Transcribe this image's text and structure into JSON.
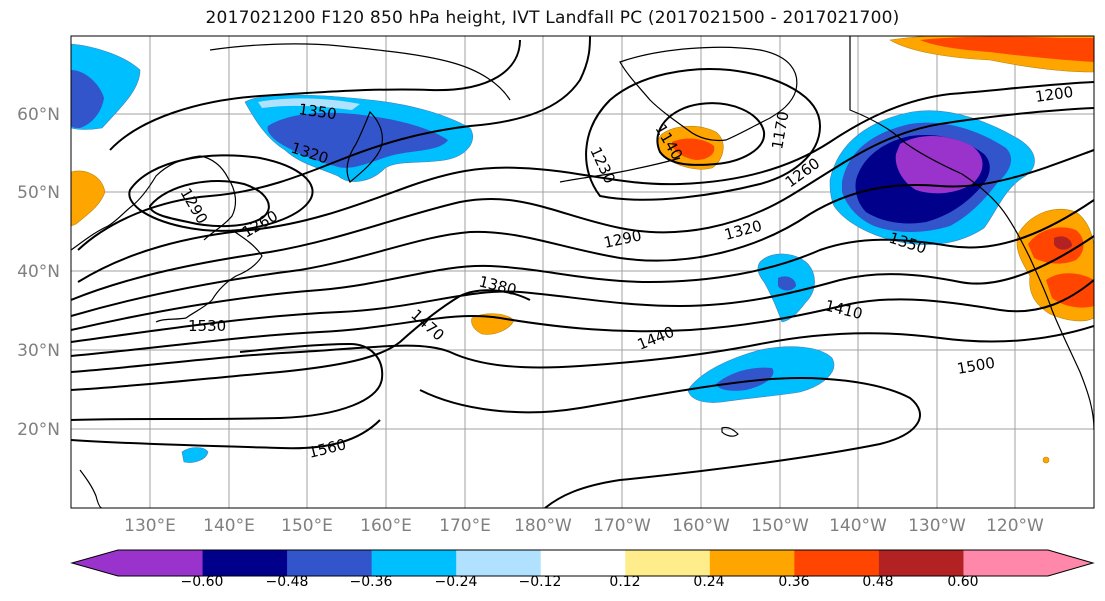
{
  "title": "2017021200 F120 850 hPa height, IVT Landfall PC (2017021500 - 2017021700)",
  "map": {
    "lat_labels": [
      "60°N",
      "50°N",
      "40°N",
      "30°N",
      "20°N"
    ],
    "lon_labels": [
      "130°E",
      "140°E",
      "150°E",
      "160°E",
      "170°E",
      "180°W",
      "170°W",
      "160°W",
      "150°W",
      "140°W",
      "130°W",
      "120°W"
    ],
    "contour_labels": [
      "1350",
      "1320",
      "1290",
      "1260",
      "1230",
      "1170",
      "1140",
      "1200",
      "1260",
      "1320",
      "1290",
      "1350",
      "1380",
      "1410",
      "1440",
      "1470",
      "1500",
      "1530",
      "1560"
    ]
  },
  "colorbar": {
    "tick_labels": [
      "−0.60",
      "−0.48",
      "−0.36",
      "−0.24",
      "−0.12",
      "0.12",
      "0.24",
      "0.36",
      "0.48",
      "0.60"
    ],
    "colors": [
      "#9933cc",
      "#00008b",
      "#3355cc",
      "#00bfff",
      "#b0e2ff",
      "#ffffff",
      "#ffec8b",
      "#ffa500",
      "#ff4500",
      "#b22222",
      "#ff88aa"
    ]
  }
}
